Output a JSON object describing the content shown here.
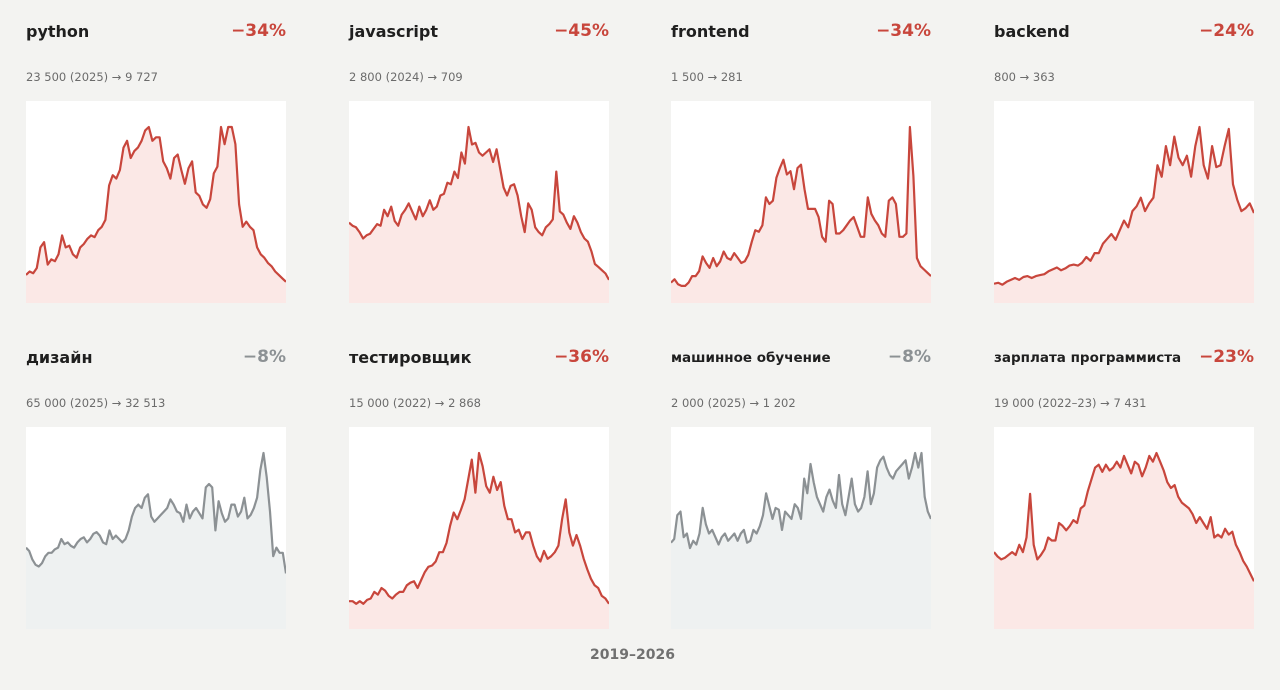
{
  "footer": {
    "period": "2019–2026"
  },
  "colors": {
    "down": "#c8463c",
    "neutral": "#8c9194",
    "down_fill": "#fbe8e6",
    "neutral_fill": "#eef1f1"
  },
  "chart_data": [
    {
      "type": "line",
      "title": "python",
      "change": "−34%",
      "subtitle": "23 500 (2025) → 9 727",
      "trend": "down",
      "y": [
        14,
        16,
        15,
        18,
        30,
        33,
        20,
        23,
        22,
        26,
        37,
        30,
        31,
        26,
        24,
        30,
        32,
        35,
        37,
        36,
        40,
        42,
        46,
        66,
        72,
        70,
        75,
        88,
        92,
        82,
        86,
        88,
        92,
        98,
        100,
        92,
        94,
        94,
        80,
        76,
        70,
        82,
        84,
        75,
        67,
        76,
        80,
        62,
        60,
        55,
        53,
        58,
        73,
        77,
        100,
        90,
        100,
        100,
        90,
        55,
        42,
        45,
        42,
        40,
        30,
        26,
        24,
        21,
        19,
        16,
        14,
        12,
        10
      ]
    },
    {
      "type": "line",
      "title": "javascript",
      "change": "−45%",
      "subtitle": "2 800 (2024) → 709",
      "trend": "down",
      "y": [
        48,
        46,
        45,
        42,
        38,
        40,
        41,
        44,
        47,
        46,
        56,
        52,
        58,
        49,
        46,
        53,
        56,
        60,
        55,
        50,
        58,
        52,
        56,
        62,
        56,
        58,
        65,
        66,
        73,
        72,
        80,
        76,
        92,
        85,
        108,
        97,
        98,
        92,
        90,
        92,
        94,
        86,
        94,
        82,
        70,
        65,
        71,
        72,
        65,
        52,
        42,
        60,
        56,
        45,
        42,
        40,
        45,
        47,
        50,
        80,
        55,
        53,
        48,
        44,
        52,
        48,
        42,
        38,
        36,
        30,
        22,
        20,
        18,
        16,
        12
      ]
    },
    {
      "type": "line",
      "title": "frontend",
      "change": "−34%",
      "subtitle": "1 500 → 281",
      "trend": "down",
      "y": [
        10,
        12,
        9,
        8,
        8,
        10,
        14,
        14,
        17,
        26,
        22,
        19,
        25,
        20,
        23,
        29,
        25,
        24,
        28,
        25,
        22,
        23,
        27,
        35,
        42,
        41,
        45,
        62,
        58,
        60,
        74,
        80,
        85,
        76,
        78,
        67,
        80,
        82,
        67,
        55,
        55,
        55,
        50,
        38,
        35,
        60,
        58,
        40,
        40,
        42,
        45,
        48,
        50,
        44,
        38,
        38,
        62,
        52,
        48,
        45,
        40,
        38,
        60,
        62,
        58,
        38,
        38,
        40,
        105,
        75,
        25,
        20,
        18,
        16,
        14
      ]
    },
    {
      "type": "line",
      "title": "backend",
      "change": "−24%",
      "subtitle": "800 → 363",
      "trend": "down",
      "y": [
        16,
        17,
        15,
        18,
        20,
        22,
        20,
        23,
        24,
        22,
        24,
        25,
        26,
        29,
        31,
        33,
        30,
        32,
        35,
        36,
        35,
        38,
        44,
        40,
        48,
        48,
        58,
        63,
        68,
        62,
        72,
        82,
        75,
        92,
        97,
        106,
        92,
        100,
        106,
        140,
        128,
        160,
        140,
        170,
        148,
        140,
        150,
        128,
        160,
        180,
        140,
        126,
        160,
        138,
        140,
        160,
        178,
        120,
        104,
        92,
        95,
        100,
        90
      ]
    },
    {
      "type": "line",
      "title": "дизайн",
      "change": "−8%",
      "subtitle": "65 000 (2025) → 32 513",
      "trend": "neutral",
      "y": [
        45,
        43,
        38,
        35,
        34,
        36,
        40,
        42,
        42,
        44,
        45,
        50,
        47,
        48,
        46,
        45,
        48,
        50,
        51,
        48,
        50,
        53,
        54,
        52,
        48,
        47,
        55,
        50,
        52,
        50,
        48,
        50,
        55,
        63,
        68,
        70,
        68,
        74,
        76,
        63,
        60,
        62,
        64,
        66,
        68,
        73,
        70,
        66,
        65,
        60,
        70,
        62,
        66,
        68,
        65,
        62,
        80,
        82,
        80,
        55,
        72,
        65,
        60,
        62,
        70,
        70,
        63,
        66,
        74,
        62,
        64,
        68,
        74,
        90,
        100,
        86,
        66,
        40,
        45,
        42,
        42,
        30
      ]
    },
    {
      "type": "line",
      "title": "тестировщик",
      "change": "−36%",
      "subtitle": "15 000 (2022) → 2 868",
      "trend": "down",
      "y": [
        18,
        18,
        16,
        18,
        16,
        19,
        20,
        25,
        23,
        28,
        26,
        22,
        20,
        23,
        25,
        25,
        30,
        32,
        33,
        28,
        34,
        40,
        44,
        45,
        48,
        55,
        55,
        62,
        75,
        85,
        80,
        87,
        95,
        110,
        125,
        100,
        130,
        120,
        105,
        100,
        112,
        102,
        108,
        90,
        80,
        80,
        70,
        72,
        65,
        70,
        70,
        60,
        52,
        48,
        56,
        50,
        52,
        55,
        60,
        80,
        95,
        70,
        60,
        68,
        60,
        50,
        42,
        35,
        30,
        28,
        22,
        20,
        16
      ]
    },
    {
      "type": "line",
      "title": "машинное обучение",
      "change": "−8%",
      "subtitle": "2 000 (2025) → 1 202",
      "trend": "neutral",
      "y": [
        45,
        47,
        60,
        62,
        48,
        50,
        42,
        46,
        44,
        50,
        64,
        55,
        50,
        52,
        48,
        44,
        48,
        50,
        46,
        48,
        50,
        46,
        50,
        52,
        45,
        46,
        52,
        50,
        54,
        60,
        72,
        65,
        58,
        64,
        63,
        52,
        62,
        60,
        58,
        66,
        64,
        58,
        80,
        72,
        88,
        78,
        70,
        66,
        62,
        70,
        74,
        68,
        64,
        82,
        66,
        60,
        70,
        80,
        66,
        62,
        64,
        70,
        84,
        66,
        72,
        86,
        90,
        92,
        86,
        82,
        80,
        84,
        86,
        88,
        90,
        80,
        86,
        94,
        86,
        94,
        70,
        62,
        58
      ]
    },
    {
      "type": "line",
      "title": "зарплата программиста",
      "change": "−23%",
      "subtitle": "19 000 (2022–23) → 7 431",
      "trend": "down",
      "y": [
        50,
        47,
        45,
        46,
        48,
        50,
        48,
        55,
        50,
        60,
        90,
        55,
        45,
        48,
        52,
        60,
        58,
        58,
        70,
        68,
        65,
        68,
        72,
        70,
        80,
        82,
        92,
        100,
        108,
        110,
        105,
        110,
        106,
        108,
        112,
        108,
        116,
        110,
        104,
        112,
        110,
        102,
        108,
        116,
        112,
        118,
        112,
        106,
        98,
        94,
        96,
        88,
        84,
        82,
        80,
        76,
        70,
        74,
        70,
        66,
        74,
        60,
        62,
        60,
        66,
        62,
        64,
        55,
        50,
        44,
        40,
        35,
        30
      ]
    }
  ]
}
